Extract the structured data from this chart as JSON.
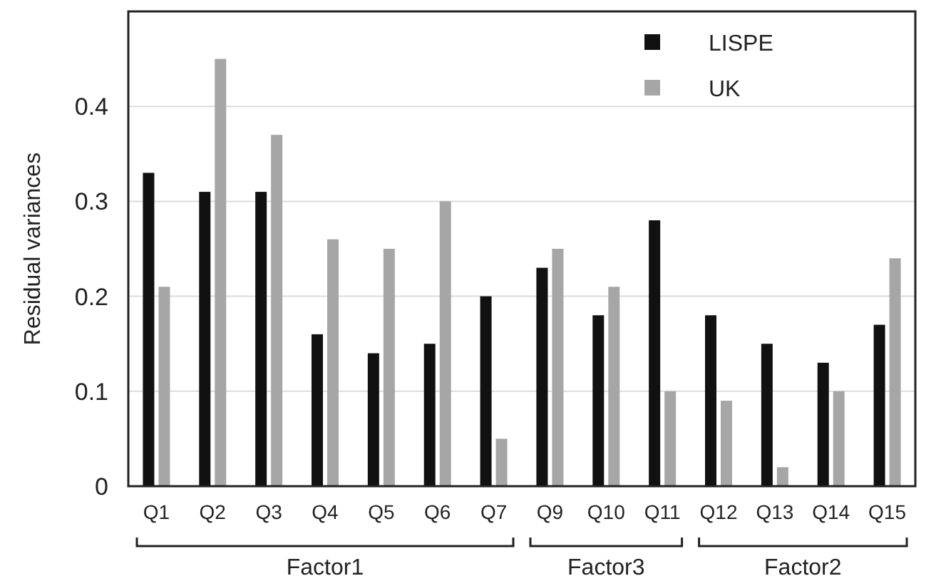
{
  "chart_data": {
    "type": "bar",
    "ylabel": "Residual variances",
    "categories": [
      "Q1",
      "Q2",
      "Q3",
      "Q4",
      "Q5",
      "Q6",
      "Q7",
      "Q9",
      "Q10",
      "Q11",
      "Q12",
      "Q13",
      "Q14",
      "Q15"
    ],
    "series": [
      {
        "name": "LISPE",
        "color": "#111111",
        "values": [
          0.33,
          0.31,
          0.31,
          0.16,
          0.14,
          0.15,
          0.2,
          0.23,
          0.18,
          0.28,
          0.18,
          0.15,
          0.13,
          0.17
        ]
      },
      {
        "name": "UK",
        "color": "#a6a6a6",
        "values": [
          0.21,
          0.45,
          0.37,
          0.26,
          0.25,
          0.3,
          0.05,
          0.25,
          0.21,
          0.1,
          0.09,
          0.02,
          0.1,
          0.24
        ]
      }
    ],
    "ylim": [
      0,
      0.5
    ],
    "yticks": [
      0,
      0.1,
      0.2,
      0.3,
      0.4
    ],
    "grid": "y",
    "legend": "top right",
    "annotations": [
      "Factor1",
      "Factor3",
      "Factor2"
    ]
  }
}
